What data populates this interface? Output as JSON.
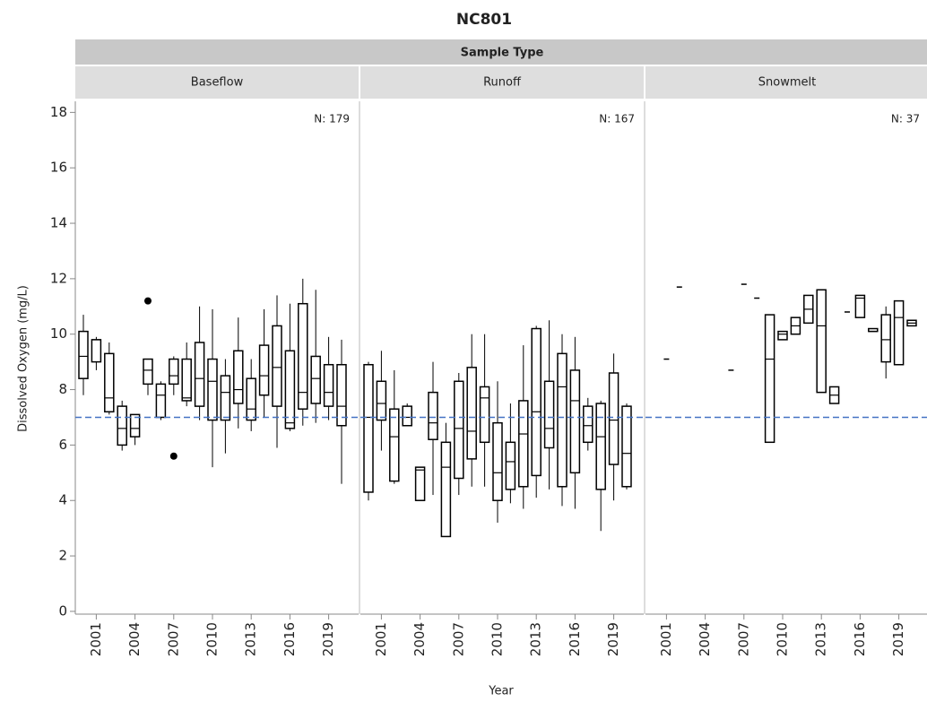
{
  "chart_data": {
    "type": "box",
    "title": "NC801",
    "group_label": "Sample Type",
    "xlabel": "Year",
    "ylabel": "Dissolved Oxygen (mg/L)",
    "ylim": [
      -0.1,
      18.4
    ],
    "yticks": [
      0,
      2,
      4,
      6,
      8,
      10,
      12,
      14,
      16,
      18
    ],
    "xlim": [
      1999.375,
      2021.32
    ],
    "xticks": [
      2001,
      2004,
      2007,
      2010,
      2013,
      2016,
      2019
    ],
    "ref_line": 7,
    "ref_color": "#4472c4",
    "panels": [
      {
        "name": "Baseflow",
        "n_label": "N: 179",
        "boxes": [
          {
            "x": 2000,
            "whisker_low": 7.8,
            "q1": 8.4,
            "median": 9.2,
            "q3": 10.1,
            "whisker_high": 10.7
          },
          {
            "x": 2001,
            "whisker_low": 8.7,
            "q1": 9.0,
            "median": 9.8,
            "q3": 9.8,
            "whisker_high": 9.9
          },
          {
            "x": 2002,
            "whisker_low": 7.1,
            "q1": 7.2,
            "median": 7.7,
            "q3": 9.3,
            "whisker_high": 9.7
          },
          {
            "x": 2003,
            "whisker_low": 5.8,
            "q1": 6.0,
            "median": 6.6,
            "q3": 7.4,
            "whisker_high": 7.6
          },
          {
            "x": 2004,
            "whisker_low": 6.0,
            "q1": 6.3,
            "median": 6.6,
            "q3": 7.1,
            "whisker_high": 7.1
          },
          {
            "x": 2005,
            "whisker_low": 7.8,
            "q1": 8.2,
            "median": 8.7,
            "q3": 9.1,
            "whisker_high": 9.1,
            "outliers": [
              11.2
            ]
          },
          {
            "x": 2006,
            "whisker_low": 6.9,
            "q1": 7.0,
            "median": 7.8,
            "q3": 8.2,
            "whisker_high": 8.3
          },
          {
            "x": 2007,
            "whisker_low": 7.8,
            "q1": 8.2,
            "median": 8.5,
            "q3": 9.1,
            "whisker_high": 9.2,
            "outliers": [
              5.6
            ]
          },
          {
            "x": 2008,
            "whisker_low": 7.4,
            "q1": 7.6,
            "median": 7.7,
            "q3": 9.1,
            "whisker_high": 9.7
          },
          {
            "x": 2009,
            "whisker_low": 6.9,
            "q1": 7.4,
            "median": 8.4,
            "q3": 9.7,
            "whisker_high": 11.0
          },
          {
            "x": 2010,
            "whisker_low": 5.2,
            "q1": 6.9,
            "median": 8.3,
            "q3": 9.1,
            "whisker_high": 10.9
          },
          {
            "x": 2011,
            "whisker_low": 5.7,
            "q1": 6.9,
            "median": 7.9,
            "q3": 8.5,
            "whisker_high": 9.1
          },
          {
            "x": 2012,
            "whisker_low": 6.6,
            "q1": 7.5,
            "median": 8.0,
            "q3": 9.4,
            "whisker_high": 10.6
          },
          {
            "x": 2013,
            "whisker_low": 6.5,
            "q1": 6.9,
            "median": 7.3,
            "q3": 8.4,
            "whisker_high": 9.1
          },
          {
            "x": 2014,
            "whisker_low": 7.0,
            "q1": 7.8,
            "median": 8.5,
            "q3": 9.6,
            "whisker_high": 10.9
          },
          {
            "x": 2015,
            "whisker_low": 5.9,
            "q1": 7.4,
            "median": 8.8,
            "q3": 10.3,
            "whisker_high": 11.4
          },
          {
            "x": 2016,
            "whisker_low": 6.5,
            "q1": 6.6,
            "median": 6.8,
            "q3": 9.4,
            "whisker_high": 11.1
          },
          {
            "x": 2017,
            "whisker_low": 6.7,
            "q1": 7.3,
            "median": 7.9,
            "q3": 11.1,
            "whisker_high": 12.0
          },
          {
            "x": 2018,
            "whisker_low": 6.8,
            "q1": 7.5,
            "median": 8.4,
            "q3": 9.2,
            "whisker_high": 11.6
          },
          {
            "x": 2019,
            "whisker_low": 6.9,
            "q1": 7.4,
            "median": 7.9,
            "q3": 8.9,
            "whisker_high": 9.9
          },
          {
            "x": 2020,
            "whisker_low": 4.6,
            "q1": 6.7,
            "median": 7.4,
            "q3": 8.9,
            "whisker_high": 9.8
          }
        ]
      },
      {
        "name": "Runoff",
        "n_label": "N: 167",
        "boxes": [
          {
            "x": 2000,
            "whisker_low": 4.0,
            "q1": 4.3,
            "median": 7.0,
            "q3": 8.9,
            "whisker_high": 9.0
          },
          {
            "x": 2001,
            "whisker_low": 5.8,
            "q1": 6.9,
            "median": 7.5,
            "q3": 8.3,
            "whisker_high": 9.4
          },
          {
            "x": 2002,
            "whisker_low": 4.6,
            "q1": 4.7,
            "median": 6.3,
            "q3": 7.3,
            "whisker_high": 8.7
          },
          {
            "x": 2003,
            "whisker_low": 6.7,
            "q1": 6.7,
            "median": 7.0,
            "q3": 7.4,
            "whisker_high": 7.5
          },
          {
            "x": 2004,
            "whisker_low": 4.0,
            "q1": 4.0,
            "median": 5.1,
            "q3": 5.2,
            "whisker_high": 5.2
          },
          {
            "x": 2005,
            "whisker_low": 4.2,
            "q1": 6.2,
            "median": 6.8,
            "q3": 7.9,
            "whisker_high": 9.0
          },
          {
            "x": 2006,
            "whisker_low": 2.7,
            "q1": 2.7,
            "median": 5.2,
            "q3": 6.1,
            "whisker_high": 6.8
          },
          {
            "x": 2007,
            "whisker_low": 4.2,
            "q1": 4.8,
            "median": 6.6,
            "q3": 8.3,
            "whisker_high": 8.6
          },
          {
            "x": 2008,
            "whisker_low": 4.5,
            "q1": 5.5,
            "median": 6.5,
            "q3": 8.8,
            "whisker_high": 10.0
          },
          {
            "x": 2009,
            "whisker_low": 4.5,
            "q1": 6.1,
            "median": 7.7,
            "q3": 8.1,
            "whisker_high": 10.0
          },
          {
            "x": 2010,
            "whisker_low": 3.2,
            "q1": 4.0,
            "median": 5.0,
            "q3": 6.8,
            "whisker_high": 8.3
          },
          {
            "x": 2011,
            "whisker_low": 3.9,
            "q1": 4.4,
            "median": 5.4,
            "q3": 6.1,
            "whisker_high": 7.5
          },
          {
            "x": 2012,
            "whisker_low": 3.7,
            "q1": 4.5,
            "median": 6.4,
            "q3": 7.6,
            "whisker_high": 9.6
          },
          {
            "x": 2013,
            "whisker_low": 4.1,
            "q1": 4.9,
            "median": 7.2,
            "q3": 10.2,
            "whisker_high": 10.3
          },
          {
            "x": 2014,
            "whisker_low": 4.4,
            "q1": 5.9,
            "median": 6.6,
            "q3": 8.3,
            "whisker_high": 10.5
          },
          {
            "x": 2015,
            "whisker_low": 3.8,
            "q1": 4.5,
            "median": 8.1,
            "q3": 9.3,
            "whisker_high": 10.0
          },
          {
            "x": 2016,
            "whisker_low": 3.7,
            "q1": 5.0,
            "median": 7.6,
            "q3": 8.7,
            "whisker_high": 9.9
          },
          {
            "x": 2017,
            "whisker_low": 5.8,
            "q1": 6.1,
            "median": 6.7,
            "q3": 7.4,
            "whisker_high": 7.7
          },
          {
            "x": 2018,
            "whisker_low": 2.9,
            "q1": 4.4,
            "median": 6.3,
            "q3": 7.5,
            "whisker_high": 7.6
          },
          {
            "x": 2019,
            "whisker_low": 4.0,
            "q1": 5.3,
            "median": 6.9,
            "q3": 8.6,
            "whisker_high": 9.3
          },
          {
            "x": 2020,
            "whisker_low": 4.4,
            "q1": 4.5,
            "median": 5.7,
            "q3": 7.4,
            "whisker_high": 7.5
          }
        ]
      },
      {
        "name": "Snowmelt",
        "n_label": "N: 37",
        "boxes": [
          {
            "x": 2001,
            "median": 9.1
          },
          {
            "x": 2002,
            "median": 11.7
          },
          {
            "x": 2006,
            "median": 8.7
          },
          {
            "x": 2007,
            "median": 11.8
          },
          {
            "x": 2008,
            "median": 11.3
          },
          {
            "x": 2009,
            "whisker_low": 6.1,
            "q1": 6.1,
            "median": 9.1,
            "q3": 10.7,
            "whisker_high": 10.7
          },
          {
            "x": 2010,
            "whisker_low": 9.8,
            "q1": 9.8,
            "median": 10.0,
            "q3": 10.1,
            "whisker_high": 10.1
          },
          {
            "x": 2011,
            "whisker_low": 10.0,
            "q1": 10.0,
            "median": 10.3,
            "q3": 10.6,
            "whisker_high": 10.6
          },
          {
            "x": 2012,
            "whisker_low": 10.4,
            "q1": 10.4,
            "median": 10.9,
            "q3": 11.4,
            "whisker_high": 11.4
          },
          {
            "x": 2013,
            "whisker_low": 7.9,
            "q1": 7.9,
            "median": 10.3,
            "q3": 11.6,
            "whisker_high": 11.6
          },
          {
            "x": 2014,
            "whisker_low": 7.5,
            "q1": 7.5,
            "median": 7.8,
            "q3": 8.1,
            "whisker_high": 8.1
          },
          {
            "x": 2015,
            "median": 10.8
          },
          {
            "x": 2016,
            "whisker_low": 10.6,
            "q1": 10.6,
            "median": 11.3,
            "q3": 11.4,
            "whisker_high": 11.4
          },
          {
            "x": 2017,
            "whisker_low": 10.1,
            "q1": 10.1,
            "median": 10.1,
            "q3": 10.2,
            "whisker_high": 10.2
          },
          {
            "x": 2018,
            "whisker_low": 8.4,
            "q1": 9.0,
            "median": 9.8,
            "q3": 10.7,
            "whisker_high": 11.0
          },
          {
            "x": 2019,
            "whisker_low": 8.9,
            "q1": 8.9,
            "median": 10.6,
            "q3": 11.2,
            "whisker_high": 11.2
          },
          {
            "x": 2020,
            "whisker_low": 10.3,
            "q1": 10.3,
            "median": 10.4,
            "q3": 10.5,
            "whisker_high": 10.5
          }
        ]
      }
    ]
  }
}
